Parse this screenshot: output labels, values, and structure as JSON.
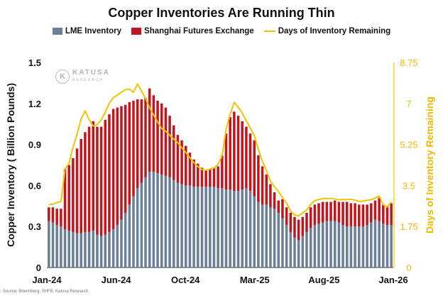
{
  "chart_data": {
    "type": "bar",
    "title": "Copper Inventories Are Running Thin",
    "ylabel": "Copper Inventory ( Billion Pounds)",
    "y2label": "Days of Inventory Remaining",
    "ylim": [
      0,
      1.5
    ],
    "y2lim": [
      0,
      8.75
    ],
    "yticks": [
      "0",
      "0.3",
      "0.6",
      "0.9",
      "1.2",
      "1.5"
    ],
    "y2ticks": [
      "0",
      "1.75",
      "3.5",
      "5.25",
      "7",
      "8.75"
    ],
    "xticks": [
      "Jan-24",
      "Jun-24",
      "Oct-24",
      "Mar-25",
      "Aug-25",
      "Jan-26"
    ],
    "stacked": true,
    "legend_position": "top",
    "series": [
      {
        "name": "LME Inventory",
        "color": "#6b7f99",
        "values": [
          0.34,
          0.33,
          0.31,
          0.3,
          0.28,
          0.27,
          0.26,
          0.25,
          0.25,
          0.26,
          0.26,
          0.27,
          0.24,
          0.23,
          0.24,
          0.26,
          0.28,
          0.31,
          0.35,
          0.4,
          0.46,
          0.52,
          0.58,
          0.62,
          0.66,
          0.7,
          0.7,
          0.69,
          0.68,
          0.67,
          0.66,
          0.64,
          0.62,
          0.61,
          0.6,
          0.6,
          0.59,
          0.59,
          0.59,
          0.59,
          0.59,
          0.59,
          0.58,
          0.58,
          0.57,
          0.57,
          0.56,
          0.56,
          0.57,
          0.58,
          0.56,
          0.52,
          0.48,
          0.46,
          0.46,
          0.44,
          0.43,
          0.4,
          0.36,
          0.31,
          0.26,
          0.22,
          0.2,
          0.23,
          0.26,
          0.29,
          0.31,
          0.32,
          0.33,
          0.34,
          0.34,
          0.34,
          0.33,
          0.31,
          0.3,
          0.3,
          0.3,
          0.3,
          0.3,
          0.31,
          0.33,
          0.35,
          0.34,
          0.32,
          0.31,
          0.31
        ]
      },
      {
        "name": "Shanghai Futures Exchange",
        "color": "#c0161d",
        "values": [
          0.1,
          0.11,
          0.12,
          0.13,
          0.44,
          0.48,
          0.54,
          0.62,
          0.69,
          0.73,
          0.77,
          0.8,
          0.79,
          0.8,
          0.84,
          0.86,
          0.88,
          0.86,
          0.83,
          0.79,
          0.75,
          0.7,
          0.65,
          0.61,
          0.58,
          0.61,
          0.56,
          0.53,
          0.52,
          0.5,
          0.45,
          0.4,
          0.35,
          0.32,
          0.29,
          0.24,
          0.2,
          0.17,
          0.14,
          0.12,
          0.13,
          0.14,
          0.16,
          0.24,
          0.41,
          0.53,
          0.58,
          0.55,
          0.5,
          0.45,
          0.42,
          0.41,
          0.34,
          0.28,
          0.22,
          0.17,
          0.12,
          0.09,
          0.14,
          0.13,
          0.14,
          0.15,
          0.15,
          0.14,
          0.14,
          0.15,
          0.15,
          0.15,
          0.15,
          0.14,
          0.14,
          0.15,
          0.15,
          0.17,
          0.18,
          0.17,
          0.17,
          0.16,
          0.16,
          0.15,
          0.14,
          0.14,
          0.17,
          0.14,
          0.14,
          0.16
        ]
      },
      {
        "name": "Days of Inventory Remaining",
        "color": "#f5c200",
        "type": "line",
        "axis": "y2",
        "values": [
          2.69,
          2.7,
          2.77,
          2.81,
          4.2,
          4.45,
          5.13,
          5.68,
          6.33,
          6.68,
          6.3,
          6.04,
          6.1,
          6.3,
          6.63,
          7.01,
          7.25,
          7.35,
          7.48,
          7.59,
          7.61,
          7.48,
          7.83,
          7.53,
          7.21,
          6.82,
          6.51,
          6.21,
          5.93,
          5.81,
          5.65,
          5.48,
          5.33,
          5.11,
          4.91,
          4.69,
          4.48,
          4.3,
          4.18,
          4.15,
          4.2,
          4.25,
          4.4,
          4.77,
          5.9,
          6.54,
          7.05,
          6.84,
          6.59,
          6.26,
          5.95,
          5.63,
          5.04,
          4.54,
          4.14,
          3.69,
          3.45,
          3.24,
          2.98,
          2.75,
          2.41,
          2.24,
          2.2,
          2.33,
          2.46,
          2.69,
          2.85,
          2.9,
          2.94,
          2.94,
          2.95,
          2.92,
          2.89,
          2.9,
          2.9,
          2.91,
          2.87,
          2.82,
          2.83,
          2.87,
          2.89,
          2.97,
          3.05,
          2.67,
          2.58,
          2.8
        ]
      }
    ]
  },
  "watermark": {
    "brand": "KATUSA",
    "sub": "RESEARCH"
  },
  "source_note": "Source: Bloomberg, SHFE, Katusa Research"
}
